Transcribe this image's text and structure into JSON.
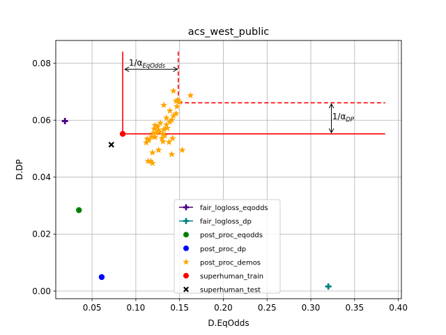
{
  "chart_data": {
    "type": "scatter",
    "title": "acs_west_public",
    "xlabel": "D.EqOdds",
    "ylabel": "D.DP",
    "xlim": [
      0.0085,
      0.4035
    ],
    "ylim": [
      -0.0027,
      0.088
    ],
    "xticks": [
      0.05,
      0.1,
      0.15,
      0.2,
      0.25,
      0.3,
      0.35,
      0.4
    ],
    "xtick_labels": [
      "0.05",
      "0.10",
      "0.15",
      "0.20",
      "0.25",
      "0.30",
      "0.35",
      "0.40"
    ],
    "yticks": [
      0.0,
      0.02,
      0.04,
      0.06,
      0.08
    ],
    "ytick_labels": [
      "0.00",
      "0.02",
      "0.04",
      "0.06",
      "0.08"
    ],
    "grid": true,
    "legend_position": "lower-center",
    "series": [
      {
        "name": "fair_logloss_eqodds",
        "marker": "plus",
        "color": "#4b0082",
        "points": [
          [
            0.019,
            0.0597
          ]
        ]
      },
      {
        "name": "fair_logloss_dp",
        "marker": "plus",
        "color": "#008080",
        "points": [
          [
            0.32,
            0.0016
          ]
        ]
      },
      {
        "name": "post_proc_eqodds",
        "marker": "circle",
        "color": "#008000",
        "points": [
          [
            0.035,
            0.0284
          ]
        ]
      },
      {
        "name": "post_proc_dp",
        "marker": "circle",
        "color": "#0000ff",
        "points": [
          [
            0.061,
            0.0049
          ]
        ]
      },
      {
        "name": "post_proc_demos",
        "marker": "star",
        "color": "#ffa500",
        "points": [
          [
            0.1625,
            0.0687
          ],
          [
            0.143,
            0.0703
          ],
          [
            0.148,
            0.0671
          ],
          [
            0.15,
            0.0664
          ],
          [
            0.146,
            0.0667
          ],
          [
            0.132,
            0.0653
          ],
          [
            0.147,
            0.0648
          ],
          [
            0.139,
            0.0633
          ],
          [
            0.146,
            0.0623
          ],
          [
            0.143,
            0.0615
          ],
          [
            0.135,
            0.0608
          ],
          [
            0.141,
            0.0601
          ],
          [
            0.139,
            0.0594
          ],
          [
            0.128,
            0.059
          ],
          [
            0.135,
            0.0584
          ],
          [
            0.122,
            0.0582
          ],
          [
            0.125,
            0.0577
          ],
          [
            0.136,
            0.0572
          ],
          [
            0.121,
            0.057
          ],
          [
            0.132,
            0.0568
          ],
          [
            0.126,
            0.0565
          ],
          [
            0.127,
            0.0559
          ],
          [
            0.123,
            0.0555
          ],
          [
            0.12,
            0.0554
          ],
          [
            0.131,
            0.0552
          ],
          [
            0.133,
            0.0546
          ],
          [
            0.118,
            0.0542
          ],
          [
            0.122,
            0.054
          ],
          [
            0.13,
            0.0536
          ],
          [
            0.142,
            0.0536
          ],
          [
            0.113,
            0.0534
          ],
          [
            0.115,
            0.053
          ],
          [
            0.131,
            0.0525
          ],
          [
            0.138,
            0.0523
          ],
          [
            0.112,
            0.0521
          ],
          [
            0.126,
            0.0495
          ],
          [
            0.153,
            0.0495
          ],
          [
            0.119,
            0.0486
          ],
          [
            0.141,
            0.048
          ],
          [
            0.114,
            0.0456
          ],
          [
            0.117,
            0.0456
          ],
          [
            0.119,
            0.0449
          ]
        ]
      },
      {
        "name": "superhuman_train",
        "marker": "circle",
        "color": "#ff0000",
        "points": [
          [
            0.085,
            0.0552
          ]
        ]
      },
      {
        "name": "superhuman_test",
        "marker": "x",
        "color": "#000000",
        "points": [
          [
            0.072,
            0.0514
          ]
        ]
      }
    ],
    "reference_lines": {
      "color": "#ff0000",
      "solid": [
        {
          "from": [
            0.085,
            0.0552
          ],
          "to": [
            0.085,
            0.0841
          ]
        },
        {
          "from": [
            0.085,
            0.0552
          ],
          "to": [
            0.385,
            0.0552
          ]
        }
      ],
      "dashed": [
        {
          "from": [
            0.1485,
            0.0841
          ],
          "to": [
            0.1485,
            0.0661
          ]
        },
        {
          "from": [
            0.1485,
            0.0661
          ],
          "to": [
            0.385,
            0.0661
          ]
        }
      ]
    },
    "annotations": [
      {
        "text": "1/α",
        "subscript": "EqOdds",
        "arrow_from": [
          0.0875,
          0.0779
        ],
        "arrow_to": [
          0.1475,
          0.0779
        ],
        "label_at": [
          0.092,
          0.0792
        ]
      },
      {
        "text": "1/α",
        "subscript": "DP",
        "arrow_from": [
          0.3235,
          0.0657
        ],
        "arrow_to": [
          0.3235,
          0.0556
        ],
        "label_at": [
          0.3245,
          0.0603
        ]
      }
    ]
  }
}
